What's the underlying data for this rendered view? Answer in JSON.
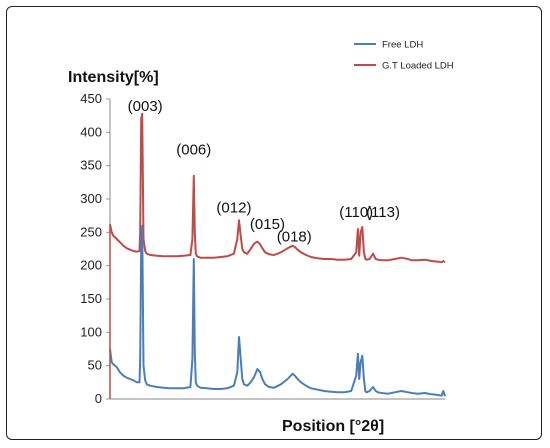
{
  "chart_data": {
    "type": "line",
    "ylabel": "Intensity[%]",
    "xlabel": "Position [°2θ]",
    "ylim": [
      0,
      450
    ],
    "yticks": [
      0,
      50,
      100,
      150,
      200,
      250,
      300,
      350,
      400,
      450
    ],
    "xlim": [
      0,
      100
    ],
    "grid": false,
    "legend_position": "top-right",
    "annotations": [
      {
        "text": "(003)",
        "x": 10.5,
        "y": 432
      },
      {
        "text": "(006)",
        "x": 25,
        "y": 367
      },
      {
        "text": "(012)",
        "x": 37,
        "y": 280
      },
      {
        "text": "(015)",
        "x": 47,
        "y": 255
      },
      {
        "text": "(018)",
        "x": 55,
        "y": 236
      },
      {
        "text": "(110)",
        "x": 73.5,
        "y": 273
      },
      {
        "text": "(113)",
        "x": 81.5,
        "y": 273
      }
    ],
    "series": [
      {
        "name": "Free LDH",
        "color": "#4a7ebb",
        "x": [
          0,
          0.5,
          1,
          2,
          3,
          4,
          5,
          6,
          7,
          8,
          8.8,
          9,
          9.3,
          9.6,
          10,
          10.5,
          11,
          12,
          14,
          16,
          18,
          20,
          22,
          24,
          24.6,
          25,
          25.3,
          25.6,
          26,
          27,
          29,
          31,
          33,
          35,
          37,
          38,
          38.5,
          39,
          39.5,
          40,
          41,
          42,
          43,
          44,
          44.8,
          45.5,
          46.3,
          47.5,
          49,
          51,
          53,
          54.5,
          55.2,
          56,
          57,
          58.5,
          60,
          62,
          64,
          66,
          68,
          70,
          72,
          73.5,
          74,
          74.4,
          74.8,
          75.3,
          75.8,
          76.2,
          76.6,
          77.5,
          78.5,
          79.3,
          80,
          81,
          83,
          85,
          87,
          89,
          90,
          92,
          94,
          96,
          98,
          99,
          99.5,
          100
        ],
        "values": [
          75,
          55,
          52,
          48,
          40,
          35,
          32,
          30,
          28,
          25,
          25,
          60,
          230,
          260,
          50,
          28,
          22,
          20,
          18,
          17,
          16,
          16,
          16,
          18,
          60,
          210,
          70,
          25,
          20,
          17,
          16,
          15,
          15,
          16,
          20,
          40,
          93,
          60,
          30,
          22,
          20,
          25,
          33,
          45,
          40,
          30,
          22,
          18,
          17,
          22,
          30,
          38,
          35,
          30,
          25,
          20,
          16,
          14,
          12,
          11,
          10,
          10,
          12,
          35,
          68,
          30,
          55,
          65,
          30,
          12,
          10,
          12,
          18,
          12,
          10,
          9,
          8,
          10,
          12,
          10,
          9,
          8,
          9,
          7,
          6,
          5,
          12,
          4
        ]
      },
      {
        "name": "G.T Loaded LDH",
        "color": "#be4b48",
        "x": [
          0,
          0.5,
          1,
          2,
          3,
          4,
          5,
          6,
          7,
          8,
          8.8,
          9,
          9.3,
          9.6,
          10,
          10.5,
          11,
          12,
          14,
          16,
          18,
          20,
          22,
          24,
          24.6,
          25,
          25.3,
          25.6,
          26,
          27,
          29,
          31,
          33,
          35,
          37,
          38,
          38.5,
          39,
          39.5,
          40,
          41,
          42,
          43,
          44,
          44.8,
          45.5,
          46.3,
          47.5,
          49,
          51,
          53,
          54.5,
          55.2,
          56,
          57,
          58.5,
          60,
          62,
          64,
          66,
          68,
          70,
          72,
          73.5,
          74,
          74.4,
          74.8,
          75.3,
          75.8,
          76.2,
          76.6,
          77.5,
          78.5,
          79.3,
          80,
          81,
          83,
          85,
          87,
          89,
          90,
          92,
          94,
          96,
          98,
          99,
          99.5,
          100
        ],
        "values": [
          262,
          250,
          245,
          240,
          235,
          230,
          226,
          224,
          222,
          221,
          222,
          250,
          420,
          428,
          240,
          222,
          218,
          216,
          215,
          214,
          214,
          214,
          215,
          216,
          240,
          335,
          250,
          218,
          214,
          212,
          212,
          212,
          213,
          214,
          218,
          240,
          268,
          245,
          225,
          220,
          218,
          225,
          233,
          236,
          232,
          226,
          220,
          217,
          216,
          220,
          226,
          230,
          228,
          224,
          220,
          216,
          213,
          211,
          210,
          210,
          209,
          209,
          210,
          220,
          255,
          215,
          250,
          258,
          220,
          210,
          209,
          210,
          218,
          210,
          209,
          208,
          208,
          210,
          212,
          210,
          208,
          208,
          209,
          207,
          206,
          205,
          207,
          205
        ]
      }
    ]
  }
}
